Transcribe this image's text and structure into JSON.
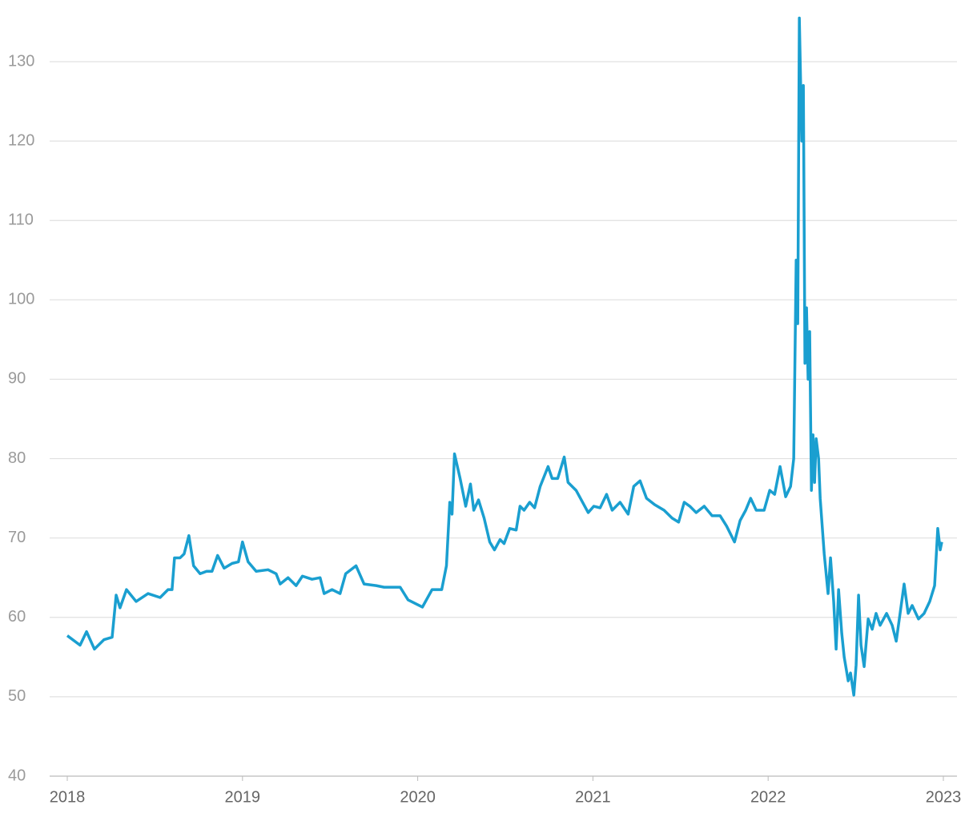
{
  "chart_data": {
    "type": "line",
    "x": [
      2018.0,
      2018.073,
      2018.11,
      2018.155,
      2018.21,
      2018.256,
      2018.279,
      2018.301,
      2018.338,
      2018.393,
      2018.461,
      2018.53,
      2018.575,
      2018.598,
      2018.612,
      2018.644,
      2018.667,
      2018.694,
      2018.721,
      2018.758,
      2018.795,
      2018.826,
      2018.858,
      2018.895,
      2018.941,
      2018.977,
      2019.0,
      2019.032,
      2019.078,
      2019.146,
      2019.192,
      2019.215,
      2019.26,
      2019.306,
      2019.342,
      2019.397,
      2019.443,
      2019.466,
      2019.511,
      2019.557,
      2019.589,
      2019.648,
      2019.694,
      2019.763,
      2019.808,
      2019.9,
      2019.945,
      2020.027,
      2020.082,
      2020.137,
      2020.164,
      2020.183,
      2020.196,
      2020.21,
      2020.242,
      2020.274,
      2020.301,
      2020.32,
      2020.347,
      2020.379,
      2020.411,
      2020.438,
      2020.47,
      2020.493,
      2020.525,
      2020.562,
      2020.584,
      2020.607,
      2020.639,
      2020.667,
      2020.699,
      2020.744,
      2020.767,
      2020.799,
      2020.836,
      2020.858,
      2020.904,
      2020.941,
      2020.973,
      2021.005,
      2021.041,
      2021.078,
      2021.11,
      2021.155,
      2021.201,
      2021.233,
      2021.269,
      2021.306,
      2021.352,
      2021.406,
      2021.452,
      2021.489,
      2021.521,
      2021.553,
      2021.589,
      2021.635,
      2021.68,
      2021.726,
      2021.763,
      2021.808,
      2021.84,
      2021.872,
      2021.9,
      2021.932,
      2021.977,
      2022.009,
      2022.037,
      2022.068,
      2022.1,
      2022.128,
      2022.146,
      2022.16,
      2022.169,
      2022.178,
      2022.192,
      2022.201,
      2022.21,
      2022.219,
      2022.228,
      2022.237,
      2022.247,
      2022.256,
      2022.265,
      2022.274,
      2022.288,
      2022.297,
      2022.32,
      2022.342,
      2022.356,
      2022.374,
      2022.388,
      2022.402,
      2022.42,
      2022.434,
      2022.457,
      2022.47,
      2022.489,
      2022.502,
      2022.516,
      2022.53,
      2022.548,
      2022.571,
      2022.594,
      2022.616,
      2022.639,
      2022.676,
      2022.708,
      2022.731,
      2022.753,
      2022.776,
      2022.799,
      2022.822,
      2022.858,
      2022.89,
      2022.922,
      2022.95,
      2022.968,
      2022.982,
      2022.991
    ],
    "series": [
      {
        "color": "#1a9fd0",
        "values": [
          57.7,
          56.5,
          58.2,
          56.0,
          57.2,
          57.5,
          62.8,
          61.2,
          63.5,
          62.0,
          63.0,
          62.5,
          63.5,
          63.5,
          67.5,
          67.5,
          68.0,
          70.3,
          66.5,
          65.5,
          65.8,
          65.8,
          67.8,
          66.2,
          66.8,
          67.0,
          69.5,
          67.0,
          65.8,
          66.0,
          65.5,
          64.2,
          65.0,
          64.0,
          65.2,
          64.8,
          65.0,
          63.0,
          63.5,
          63.0,
          65.5,
          66.5,
          64.2,
          64.0,
          63.8,
          63.8,
          62.2,
          61.3,
          63.5,
          63.5,
          66.5,
          74.5,
          73.0,
          80.6,
          77.5,
          74.0,
          76.8,
          73.5,
          74.8,
          72.5,
          69.5,
          68.5,
          69.8,
          69.3,
          71.2,
          71.0,
          74.0,
          73.5,
          74.5,
          73.8,
          76.5,
          79.0,
          77.5,
          77.5,
          80.2,
          77.0,
          76.0,
          74.5,
          73.2,
          74.0,
          73.8,
          75.5,
          73.5,
          74.5,
          73.0,
          76.5,
          77.2,
          75.0,
          74.2,
          73.5,
          72.5,
          72.0,
          74.5,
          74.0,
          73.2,
          74.0,
          72.8,
          72.8,
          71.5,
          69.5,
          72.2,
          73.5,
          75.0,
          73.5,
          73.5,
          76.0,
          75.5,
          79.0,
          75.2,
          76.5,
          80.0,
          105.0,
          97.0,
          135.5,
          120.0,
          127.0,
          92.0,
          99.0,
          90.0,
          96.0,
          76.0,
          83.0,
          77.0,
          82.5,
          80.0,
          75.0,
          68.0,
          63.0,
          67.5,
          62.0,
          56.0,
          63.5,
          58.0,
          55.0,
          52.0,
          53.0,
          50.2,
          54.0,
          62.8,
          56.5,
          53.8,
          59.8,
          58.5,
          60.5,
          59.0,
          60.5,
          59.0,
          57.0,
          60.5,
          64.2,
          60.5,
          61.5,
          59.8,
          60.5,
          62.0,
          64.0,
          71.2,
          68.5,
          69.5
        ]
      }
    ],
    "xlim": [
      2018,
      2023
    ],
    "xticks": [
      2018,
      2019,
      2020,
      2021,
      2022,
      2023
    ],
    "ylim": [
      40,
      136
    ],
    "yticks": [
      40,
      50,
      60,
      70,
      80,
      90,
      100,
      110,
      120,
      130
    ],
    "grid": true
  }
}
